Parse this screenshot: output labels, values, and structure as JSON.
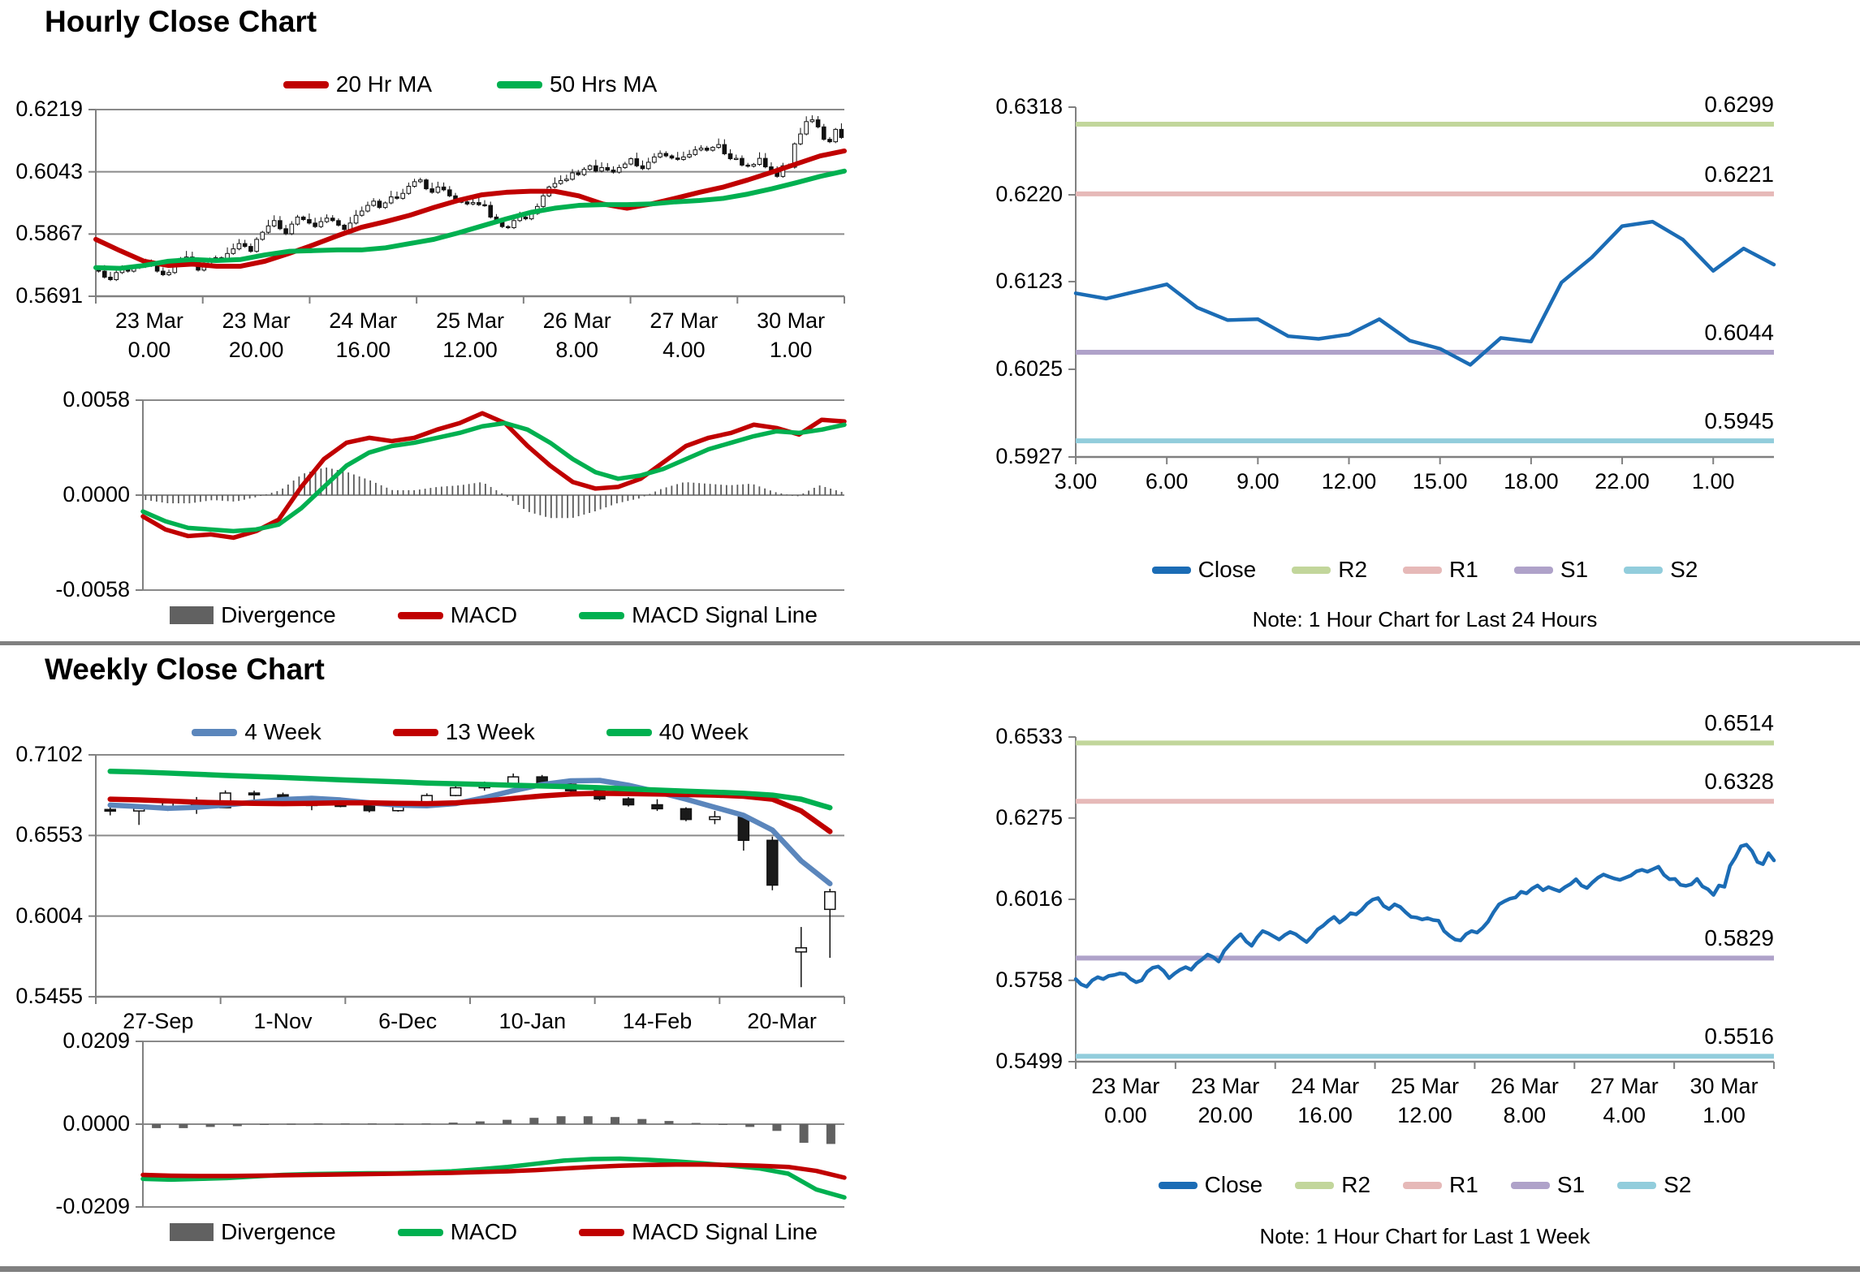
{
  "sections": {
    "hourly_title": "Hourly Close Chart",
    "weekly_title": "Weekly Close Chart"
  },
  "colors": {
    "ma_red": "#C00000",
    "ma_green": "#00B050",
    "ma4_blue": "#5B86BC",
    "close_blue": "#1B6CB5",
    "r2": "#C2D69B",
    "r1": "#E6B9B8",
    "s1": "#AFA2C9",
    "s2": "#92CDDC",
    "divergence_gray": "#616161",
    "grid": "#8A8A8A",
    "axis": "#808080"
  },
  "chart_data": [
    {
      "id": "hourly_candles",
      "type": "candlestick",
      "legend": [
        "20 Hr MA",
        "50 Hrs MA"
      ],
      "ylim": [
        0.5691,
        0.6219
      ],
      "yticks": [
        "0.6219",
        "0.6043",
        "0.5867",
        "0.5691"
      ],
      "xticklabels": [
        [
          "23 Mar",
          "0.00"
        ],
        [
          "23 Mar",
          "20.00"
        ],
        [
          "24 Mar",
          "16.00"
        ],
        [
          "25 Mar",
          "12.00"
        ],
        [
          "26 Mar",
          "8.00"
        ],
        [
          "27 Mar",
          "4.00"
        ],
        [
          "30 Mar",
          "1.00"
        ]
      ],
      "close": [
        0.5762,
        0.5745,
        0.5738,
        0.5758,
        0.5768,
        0.5762,
        0.5772,
        0.5775,
        0.578,
        0.5778,
        0.5762,
        0.5752,
        0.5758,
        0.5785,
        0.5798,
        0.5802,
        0.5788,
        0.5765,
        0.578,
        0.5792,
        0.58,
        0.5792,
        0.5812,
        0.5825,
        0.584,
        0.5832,
        0.5818,
        0.5852,
        0.5872,
        0.589,
        0.5905,
        0.5882,
        0.5868,
        0.5895,
        0.5915,
        0.5908,
        0.5898,
        0.5888,
        0.5902,
        0.5912,
        0.5905,
        0.5892,
        0.588,
        0.5898,
        0.592,
        0.5932,
        0.5948,
        0.596,
        0.5942,
        0.5955,
        0.5972,
        0.5968,
        0.5982,
        0.6002,
        0.6015,
        0.602,
        0.5995,
        0.5985,
        0.6,
        0.5992,
        0.5975,
        0.596,
        0.5958,
        0.5952,
        0.5956,
        0.595,
        0.5948,
        0.5915,
        0.59,
        0.5888,
        0.5885,
        0.5905,
        0.5915,
        0.591,
        0.5925,
        0.5945,
        0.5975,
        0.6,
        0.601,
        0.6018,
        0.6022,
        0.604,
        0.6035,
        0.605,
        0.606,
        0.6045,
        0.6055,
        0.6048,
        0.6042,
        0.6055,
        0.6065,
        0.608,
        0.606,
        0.6052,
        0.607,
        0.6085,
        0.6095,
        0.6088,
        0.6082,
        0.6078,
        0.6085,
        0.6092,
        0.6105,
        0.611,
        0.6104,
        0.6112,
        0.612,
        0.6094,
        0.608,
        0.6081,
        0.6062,
        0.6059,
        0.6064,
        0.6081,
        0.6057,
        0.6048,
        0.603,
        0.606,
        0.6056,
        0.6122,
        0.615,
        0.6185,
        0.619,
        0.617,
        0.6135,
        0.6128,
        0.6163,
        0.614
      ],
      "series": [
        {
          "name": "20 Hr MA",
          "color_key": "ma_red",
          "values": [
            0.5852,
            0.582,
            0.579,
            0.5778,
            0.5782,
            0.5776,
            0.5776,
            0.579,
            0.5812,
            0.5836,
            0.5862,
            0.5886,
            0.5902,
            0.592,
            0.5942,
            0.5962,
            0.5978,
            0.5985,
            0.5988,
            0.5988,
            0.5975,
            0.5952,
            0.594,
            0.5952,
            0.5968,
            0.5985,
            0.6,
            0.602,
            0.6042,
            0.6065,
            0.6088,
            0.6102
          ]
        },
        {
          "name": "50 Hrs MA",
          "color_key": "ma_green",
          "values": [
            0.5772,
            0.577,
            0.5778,
            0.579,
            0.5795,
            0.5792,
            0.5795,
            0.5808,
            0.5818,
            0.582,
            0.5822,
            0.5822,
            0.5828,
            0.584,
            0.5852,
            0.587,
            0.589,
            0.591,
            0.5928,
            0.594,
            0.5948,
            0.595,
            0.595,
            0.5952,
            0.5958,
            0.5962,
            0.5968,
            0.598,
            0.5995,
            0.6012,
            0.603,
            0.6045
          ]
        }
      ]
    },
    {
      "id": "hourly_macd",
      "type": "bar+line",
      "legend": [
        "Divergence",
        "MACD",
        "MACD Signal Line"
      ],
      "ylim": [
        -0.0058,
        0.0058
      ],
      "yticks": [
        "0.0058",
        "0.0000",
        "-0.0058"
      ],
      "macd_color_key": "ma_red",
      "signal_color_key": "ma_green",
      "macd": [
        -0.0013,
        -0.0021,
        -0.0025,
        -0.0024,
        -0.0026,
        -0.0022,
        -0.0015,
        0.0005,
        0.0022,
        0.0032,
        0.0035,
        0.0033,
        0.0035,
        0.004,
        0.0044,
        0.005,
        0.0044,
        0.003,
        0.0018,
        0.0008,
        0.0004,
        0.0005,
        0.001,
        0.002,
        0.003,
        0.0035,
        0.0038,
        0.0043,
        0.0041,
        0.0037,
        0.0046,
        0.0045
      ],
      "signal": [
        -0.001,
        -0.0016,
        -0.002,
        -0.0021,
        -0.0022,
        -0.0021,
        -0.0018,
        -0.0008,
        0.0005,
        0.0018,
        0.0026,
        0.003,
        0.0032,
        0.0035,
        0.0038,
        0.0042,
        0.0044,
        0.004,
        0.0032,
        0.0022,
        0.0014,
        0.001,
        0.0012,
        0.0016,
        0.0022,
        0.0028,
        0.0032,
        0.0036,
        0.0039,
        0.0038,
        0.004,
        0.0043
      ],
      "divergence_note": "divergence bars = macd - signal"
    },
    {
      "id": "hourly_last24",
      "type": "line",
      "legend": [
        "Close",
        "R2",
        "R1",
        "S1",
        "S2"
      ],
      "note": "Note: 1 Hour Chart for Last 24 Hours",
      "ylim": [
        0.5927,
        0.6318
      ],
      "yticks": [
        "0.6318",
        "0.6220",
        "0.6123",
        "0.6025",
        "0.5927"
      ],
      "xticklabels": [
        "3.00",
        "6.00",
        "9.00",
        "12.00",
        "15.00",
        "18.00",
        "22.00",
        "1.00"
      ],
      "close": [
        0.611,
        0.6104,
        0.6112,
        0.612,
        0.6094,
        0.608,
        0.6081,
        0.6062,
        0.6059,
        0.6064,
        0.6081,
        0.6057,
        0.6048,
        0.603,
        0.606,
        0.6056,
        0.6122,
        0.615,
        0.6185,
        0.619,
        0.617,
        0.6135,
        0.616,
        0.6142
      ],
      "pivots": [
        {
          "name": "R2",
          "label": "0.6299",
          "value": 0.6299,
          "color_key": "r2"
        },
        {
          "name": "R1",
          "label": "0.6221",
          "value": 0.6221,
          "color_key": "r1"
        },
        {
          "name": "S1",
          "label": "0.6044",
          "value": 0.6044,
          "color_key": "s1"
        },
        {
          "name": "S2",
          "label": "0.5945",
          "value": 0.5945,
          "color_key": "s2"
        }
      ]
    },
    {
      "id": "weekly_candles",
      "type": "candlestick",
      "legend": [
        "4 Week",
        "13 Week",
        "40 Week"
      ],
      "ylim": [
        0.5455,
        0.7102
      ],
      "yticks": [
        "0.7102",
        "0.6553",
        "0.6004",
        "0.5455"
      ],
      "xticklabels": [
        [
          "27-Sep"
        ],
        [
          "1-Nov"
        ],
        [
          "6-Dec"
        ],
        [
          "10-Jan"
        ],
        [
          "14-Feb"
        ],
        [
          "20-Mar"
        ]
      ],
      "candles_ohlc": [
        [
          0.673,
          0.6755,
          0.669,
          0.672
        ],
        [
          0.672,
          0.6745,
          0.6625,
          0.6738
        ],
        [
          0.6738,
          0.6785,
          0.672,
          0.6775
        ],
        [
          0.6775,
          0.6815,
          0.67,
          0.6742
        ],
        [
          0.6742,
          0.686,
          0.674,
          0.6842
        ],
        [
          0.6842,
          0.6858,
          0.678,
          0.683
        ],
        [
          0.683,
          0.6845,
          0.676,
          0.6768
        ],
        [
          0.6768,
          0.679,
          0.6725,
          0.6762
        ],
        [
          0.6762,
          0.68,
          0.6745,
          0.6758
        ],
        [
          0.6758,
          0.6772,
          0.671,
          0.6722
        ],
        [
          0.6722,
          0.678,
          0.6715,
          0.676
        ],
        [
          0.676,
          0.684,
          0.6755,
          0.6825
        ],
        [
          0.6825,
          0.689,
          0.682,
          0.6878
        ],
        [
          0.6878,
          0.692,
          0.6858,
          0.6905
        ],
        [
          0.6905,
          0.6975,
          0.6895,
          0.6952
        ],
        [
          0.6952,
          0.6965,
          0.689,
          0.6902
        ],
        [
          0.6902,
          0.692,
          0.685,
          0.6858
        ],
        [
          0.6858,
          0.687,
          0.679,
          0.6802
        ],
        [
          0.6802,
          0.6815,
          0.675,
          0.6762
        ],
        [
          0.6762,
          0.68,
          0.672,
          0.6735
        ],
        [
          0.6735,
          0.6745,
          0.665,
          0.6662
        ],
        [
          0.6662,
          0.672,
          0.663,
          0.668
        ],
        [
          0.668,
          0.669,
          0.645,
          0.652
        ],
        [
          0.652,
          0.6545,
          0.618,
          0.6215
        ],
        [
          0.576,
          0.593,
          0.552,
          0.5788
        ],
        [
          0.605,
          0.619,
          0.572,
          0.617
        ]
      ],
      "series": [
        {
          "name": "4 Week",
          "color_key": "ma4_blue",
          "values": [
            0.676,
            0.675,
            0.6738,
            0.6745,
            0.676,
            0.678,
            0.6798,
            0.6806,
            0.6795,
            0.6775,
            0.676,
            0.6755,
            0.677,
            0.681,
            0.6858,
            0.69,
            0.6925,
            0.6928,
            0.6895,
            0.685,
            0.68,
            0.6745,
            0.669,
            0.659,
            0.638,
            0.6225
          ]
        },
        {
          "name": "13 Week",
          "color_key": "ma_red",
          "values": [
            0.68,
            0.6795,
            0.6788,
            0.678,
            0.6775,
            0.6772,
            0.677,
            0.6772,
            0.6775,
            0.6775,
            0.6772,
            0.677,
            0.6775,
            0.6788,
            0.6805,
            0.6822,
            0.6835,
            0.684,
            0.6838,
            0.6835,
            0.6832,
            0.6828,
            0.682,
            0.68,
            0.672,
            0.658
          ]
        },
        {
          "name": "40 Week",
          "color_key": "ma_green",
          "values": [
            0.699,
            0.6985,
            0.6978,
            0.697,
            0.6962,
            0.6955,
            0.6948,
            0.694,
            0.6932,
            0.6925,
            0.6918,
            0.691,
            0.6905,
            0.69,
            0.6895,
            0.689,
            0.6885,
            0.6878,
            0.687,
            0.6862,
            0.6855,
            0.6848,
            0.684,
            0.6828,
            0.68,
            0.6742
          ]
        }
      ]
    },
    {
      "id": "weekly_macd",
      "type": "bar+line",
      "legend": [
        "Divergence",
        "MACD",
        "MACD Signal Line"
      ],
      "ylim": [
        -0.0209,
        0.0209
      ],
      "yticks": [
        "0.0209",
        "0.0000",
        "-0.0209"
      ],
      "macd_color_key": "ma_green",
      "signal_color_key": "ma_red",
      "macd": [
        -0.0138,
        -0.014,
        -0.0138,
        -0.0136,
        -0.0132,
        -0.0128,
        -0.0126,
        -0.0125,
        -0.0124,
        -0.0124,
        -0.0122,
        -0.0119,
        -0.0114,
        -0.0108,
        -0.01,
        -0.0092,
        -0.0088,
        -0.0087,
        -0.009,
        -0.0094,
        -0.0099,
        -0.0105,
        -0.0112,
        -0.0125,
        -0.0165,
        -0.0185
      ],
      "signal": [
        -0.0128,
        -0.013,
        -0.0131,
        -0.0131,
        -0.013,
        -0.0129,
        -0.0128,
        -0.0127,
        -0.0126,
        -0.0125,
        -0.0124,
        -0.0123,
        -0.0121,
        -0.0119,
        -0.0116,
        -0.0112,
        -0.0108,
        -0.0105,
        -0.0103,
        -0.0102,
        -0.0102,
        -0.0103,
        -0.0105,
        -0.0108,
        -0.0118,
        -0.0135
      ],
      "divergence_note": "divergence bars = macd - signal"
    },
    {
      "id": "weekly_last1w",
      "type": "line",
      "legend": [
        "Close",
        "R2",
        "R1",
        "S1",
        "S2"
      ],
      "note": "Note: 1 Hour Chart for Last 1 Week",
      "ylim": [
        0.5499,
        0.6533
      ],
      "yticks": [
        "0.6533",
        "0.6275",
        "0.6016",
        "0.5758",
        "0.5499"
      ],
      "xticklabels": [
        [
          "23 Mar",
          "0.00"
        ],
        [
          "23 Mar",
          "20.00"
        ],
        [
          "24 Mar",
          "16.00"
        ],
        [
          "25 Mar",
          "12.00"
        ],
        [
          "26 Mar",
          "8.00"
        ],
        [
          "27 Mar",
          "4.00"
        ],
        [
          "30 Mar",
          "1.00"
        ]
      ],
      "close_ref": "hourly_candles",
      "pivots": [
        {
          "name": "R2",
          "label": "0.6514",
          "value": 0.6514,
          "color_key": "r2"
        },
        {
          "name": "R1",
          "label": "0.6328",
          "value": 0.6328,
          "color_key": "r1"
        },
        {
          "name": "S1",
          "label": "0.5829",
          "value": 0.5829,
          "color_key": "s1"
        },
        {
          "name": "S2",
          "label": "0.5516",
          "value": 0.5516,
          "color_key": "s2"
        }
      ]
    }
  ]
}
